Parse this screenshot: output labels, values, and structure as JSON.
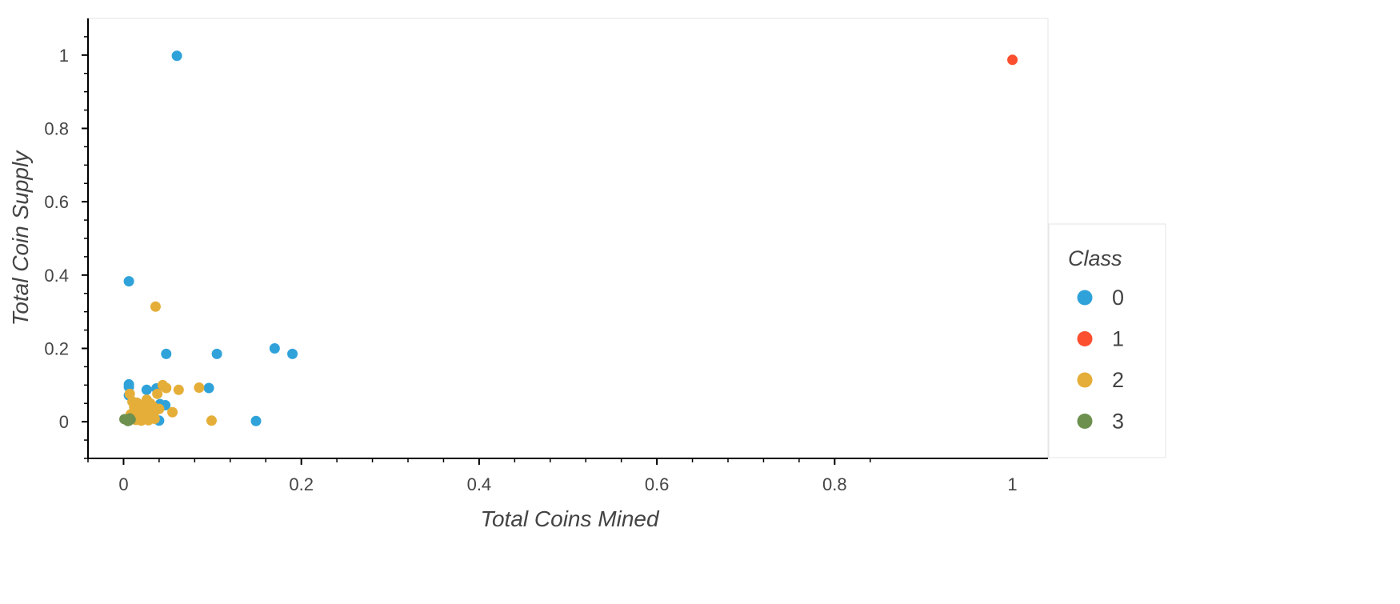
{
  "chart_data": {
    "type": "scatter",
    "xlabel": "Total Coins Mined",
    "ylabel": "Total Coin Supply",
    "xlim": [
      -0.04,
      1.04
    ],
    "ylim": [
      -0.1,
      1.1
    ],
    "x_ticks": [
      0,
      0.2,
      0.4,
      0.6,
      0.8,
      1
    ],
    "x_tick_labels": [
      "0",
      "0.2",
      "0.4",
      "0.6",
      "0.8",
      "1"
    ],
    "y_ticks": [
      0,
      0.2,
      0.4,
      0.6,
      0.8,
      1
    ],
    "y_tick_labels": [
      "0",
      "0.2",
      "0.4",
      "0.6",
      "0.8",
      "1"
    ],
    "grid": false,
    "legend": {
      "title": "Class",
      "placement": "right"
    },
    "series": [
      {
        "name": "0",
        "color": "#30a2da",
        "x": [
          0.06,
          0.006,
          0.048,
          0.105,
          0.17,
          0.19,
          0.096,
          0.149,
          0.006,
          0.006,
          0.006,
          0.026,
          0.037,
          0.041,
          0.047,
          0.04,
          0.03,
          0.02,
          0.012
        ],
        "y": [
          0.998,
          0.383,
          0.185,
          0.185,
          0.2,
          0.185,
          0.092,
          0.002,
          0.102,
          0.095,
          0.072,
          0.087,
          0.091,
          0.048,
          0.045,
          0.003,
          0.02,
          0.012,
          0.03
        ]
      },
      {
        "name": "1",
        "color": "#fc4f30",
        "x": [
          1.0
        ],
        "y": [
          0.987
        ]
      },
      {
        "name": "2",
        "color": "#e5ae38",
        "x": [
          0.036,
          0.007,
          0.044,
          0.048,
          0.062,
          0.085,
          0.038,
          0.099,
          0.055,
          0.015,
          0.018,
          0.012,
          0.02,
          0.024,
          0.028,
          0.03,
          0.033,
          0.036,
          0.04,
          0.03,
          0.025,
          0.022,
          0.018,
          0.014,
          0.02,
          0.028,
          0.035,
          0.008,
          0.026,
          0.032,
          0.022,
          0.015,
          0.01
        ],
        "y": [
          0.314,
          0.076,
          0.1,
          0.092,
          0.087,
          0.093,
          0.076,
          0.003,
          0.026,
          0.052,
          0.044,
          0.04,
          0.028,
          0.034,
          0.02,
          0.05,
          0.042,
          0.03,
          0.035,
          0.016,
          0.022,
          0.01,
          0.014,
          0.005,
          0.003,
          0.004,
          0.008,
          0.02,
          0.06,
          0.012,
          0.025,
          0.018,
          0.055
        ]
      },
      {
        "name": "3",
        "color": "#6d904f",
        "x": [
          0.001,
          0.004,
          0.006,
          0.008,
          0.007,
          0.005
        ],
        "y": [
          0.007,
          0.005,
          0.003,
          0.006,
          0.009,
          0.002
        ]
      }
    ]
  }
}
